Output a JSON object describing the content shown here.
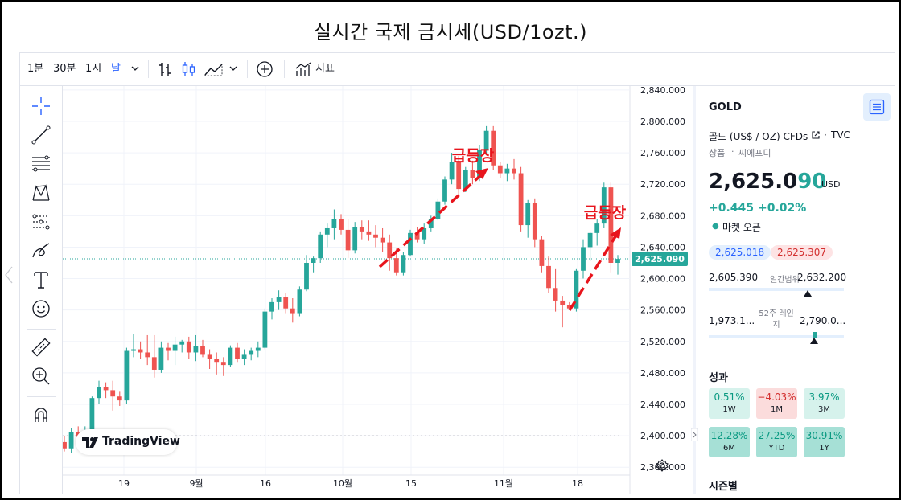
{
  "page": {
    "title": "실시간 국제 금시세(USD/1ozt.)"
  },
  "toolbar": {
    "interval_1m": "1분",
    "interval_30m": "30분",
    "interval_1h": "1시",
    "interval_day": "날",
    "indicators_label": "지표"
  },
  "panel": {
    "symbol": "GOLD",
    "name": "골드 (US$ / OZ) CFDs",
    "exchange": "TVC",
    "type": "상품",
    "subtype": "씨에프디",
    "price_main": "2,625.0",
    "price_last": "90",
    "currency": "USD",
    "change": "+0.445",
    "change_pct": "+0.02%",
    "market_status": "마켓 오픈",
    "bid": "2,625.018",
    "ask": "2,625.307",
    "day_low": "2,605.390",
    "day_range_label": "일간범위",
    "day_high": "2,632.200",
    "day_range_position": 0.73,
    "wk52_low": "1,973.1...",
    "wk52_label": "52주 레인지",
    "wk52_high": "2,790.0...",
    "wk52_position": 0.78,
    "performance_title": "성과",
    "performance": [
      {
        "value": "0.51%",
        "label": "1W",
        "dir": "up"
      },
      {
        "value": "−4.03%",
        "label": "1M",
        "dir": "down"
      },
      {
        "value": "3.97%",
        "label": "3M",
        "dir": "up"
      },
      {
        "value": "12.28%",
        "label": "6M",
        "dir": "up"
      },
      {
        "value": "27.25%",
        "label": "YTD",
        "dir": "up"
      },
      {
        "value": "30.91%",
        "label": "1Y",
        "dir": "up"
      }
    ],
    "seasonals_title": "시즌별"
  },
  "chart": {
    "watermark": "TradingView",
    "current_price_label": "2,625.090",
    "annotation_1": "급등장",
    "annotation_2": "급등장"
  },
  "colors": {
    "up": "#26a69a",
    "down": "#ef5350",
    "accent": "#2962ff",
    "annotation": "#e8141c"
  },
  "chart_data": {
    "type": "candlestick",
    "y_ticks": [
      "2,360.000",
      "2,400.000",
      "2,440.000",
      "2,480.000",
      "2,520.000",
      "2,560.000",
      "2,600.000",
      "2,640.000",
      "2,680.000",
      "2,720.000",
      "2,760.000",
      "2,800.000",
      "2,840.000"
    ],
    "ylim": [
      2350,
      2845
    ],
    "x_ticks": [
      "19",
      "9월",
      "16",
      "10월",
      "15",
      "11월",
      "18"
    ],
    "dashed_level": 2400,
    "current_price": 2625.09,
    "ohlc": [
      [
        2392,
        2400,
        2380,
        2384
      ],
      [
        2384,
        2410,
        2378,
        2405
      ],
      [
        2405,
        2412,
        2392,
        2398
      ],
      [
        2398,
        2412,
        2390,
        2405
      ],
      [
        2405,
        2450,
        2400,
        2448
      ],
      [
        2448,
        2470,
        2440,
        2462
      ],
      [
        2462,
        2468,
        2448,
        2458
      ],
      [
        2458,
        2470,
        2432,
        2450
      ],
      [
        2450,
        2456,
        2438,
        2445
      ],
      [
        2445,
        2512,
        2440,
        2508
      ],
      [
        2508,
        2530,
        2500,
        2510
      ],
      [
        2510,
        2520,
        2498,
        2506
      ],
      [
        2506,
        2528,
        2490,
        2500
      ],
      [
        2500,
        2528,
        2474,
        2484
      ],
      [
        2484,
        2520,
        2480,
        2512
      ],
      [
        2512,
        2518,
        2496,
        2508
      ],
      [
        2508,
        2526,
        2490,
        2516
      ],
      [
        2516,
        2522,
        2506,
        2520
      ],
      [
        2520,
        2526,
        2498,
        2506
      ],
      [
        2506,
        2528,
        2495,
        2514
      ],
      [
        2514,
        2522,
        2500,
        2504
      ],
      [
        2504,
        2510,
        2485,
        2498
      ],
      [
        2498,
        2506,
        2478,
        2494
      ],
      [
        2494,
        2500,
        2476,
        2490
      ],
      [
        2490,
        2515,
        2488,
        2512
      ],
      [
        2512,
        2518,
        2494,
        2498
      ],
      [
        2498,
        2510,
        2490,
        2504
      ],
      [
        2504,
        2512,
        2496,
        2508
      ],
      [
        2508,
        2520,
        2500,
        2512
      ],
      [
        2512,
        2562,
        2510,
        2558
      ],
      [
        2558,
        2575,
        2548,
        2570
      ],
      [
        2570,
        2585,
        2560,
        2576
      ],
      [
        2576,
        2582,
        2556,
        2562
      ],
      [
        2562,
        2575,
        2544,
        2556
      ],
      [
        2556,
        2590,
        2552,
        2586
      ],
      [
        2586,
        2630,
        2584,
        2620
      ],
      [
        2620,
        2628,
        2608,
        2626
      ],
      [
        2626,
        2660,
        2620,
        2656
      ],
      [
        2656,
        2670,
        2640,
        2664
      ],
      [
        2664,
        2688,
        2650,
        2676
      ],
      [
        2676,
        2682,
        2656,
        2662
      ],
      [
        2662,
        2676,
        2626,
        2636
      ],
      [
        2636,
        2672,
        2632,
        2666
      ],
      [
        2666,
        2674,
        2650,
        2660
      ],
      [
        2660,
        2674,
        2648,
        2656
      ],
      [
        2656,
        2668,
        2640,
        2652
      ],
      [
        2652,
        2664,
        2634,
        2646
      ],
      [
        2646,
        2656,
        2610,
        2626
      ],
      [
        2626,
        2638,
        2604,
        2608
      ],
      [
        2608,
        2634,
        2604,
        2630
      ],
      [
        2630,
        2662,
        2628,
        2658
      ],
      [
        2658,
        2666,
        2646,
        2650
      ],
      [
        2650,
        2670,
        2644,
        2664
      ],
      [
        2664,
        2680,
        2660,
        2676
      ],
      [
        2676,
        2702,
        2674,
        2698
      ],
      [
        2698,
        2730,
        2694,
        2726
      ],
      [
        2726,
        2760,
        2720,
        2748
      ],
      [
        2748,
        2756,
        2708,
        2714
      ],
      [
        2714,
        2742,
        2710,
        2738
      ],
      [
        2738,
        2750,
        2720,
        2728
      ],
      [
        2728,
        2770,
        2724,
        2764
      ],
      [
        2764,
        2794,
        2758,
        2788
      ],
      [
        2788,
        2794,
        2738,
        2744
      ],
      [
        2744,
        2748,
        2728,
        2734
      ],
      [
        2734,
        2746,
        2724,
        2740
      ],
      [
        2740,
        2752,
        2726,
        2734
      ],
      [
        2734,
        2742,
        2660,
        2668
      ],
      [
        2668,
        2700,
        2652,
        2696
      ],
      [
        2696,
        2702,
        2640,
        2650
      ],
      [
        2650,
        2654,
        2608,
        2616
      ],
      [
        2616,
        2628,
        2582,
        2588
      ],
      [
        2588,
        2612,
        2558,
        2572
      ],
      [
        2572,
        2578,
        2538,
        2566
      ],
      [
        2566,
        2570,
        2560,
        2562
      ],
      [
        2562,
        2612,
        2558,
        2610
      ],
      [
        2610,
        2650,
        2600,
        2640
      ],
      [
        2640,
        2660,
        2622,
        2658
      ],
      [
        2658,
        2676,
        2642,
        2670
      ],
      [
        2670,
        2722,
        2664,
        2716
      ],
      [
        2716,
        2722,
        2608,
        2620
      ],
      [
        2620,
        2630,
        2605,
        2625
      ]
    ]
  }
}
